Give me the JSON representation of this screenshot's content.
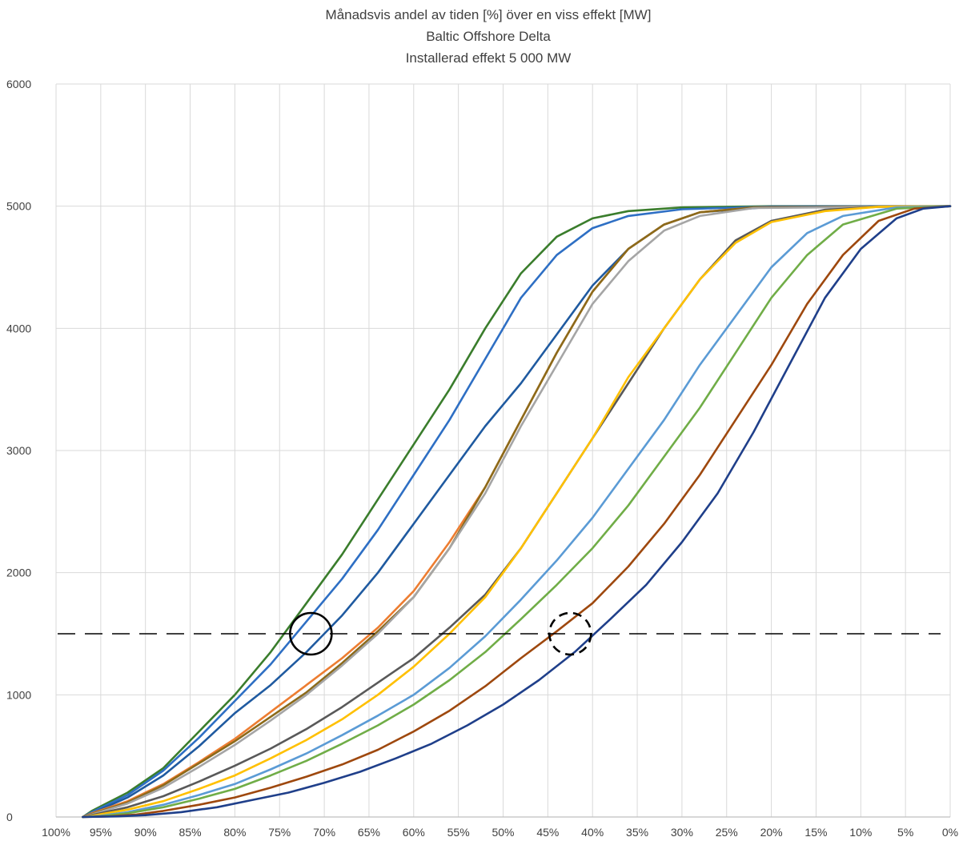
{
  "chart_data": {
    "type": "line",
    "title_lines": [
      "Månadsvis andel av tiden [%] över en viss effekt [MW]",
      "Baltic Offshore Delta",
      "Installerad effekt 5 000 MW"
    ],
    "xlabel": "",
    "ylabel": "",
    "x_ticks": [
      "100%",
      "95%",
      "90%",
      "85%",
      "80%",
      "75%",
      "70%",
      "65%",
      "60%",
      "55%",
      "50%",
      "45%",
      "40%",
      "35%",
      "30%",
      "25%",
      "20%",
      "15%",
      "10%",
      "5%",
      "0%"
    ],
    "x_tick_values": [
      100,
      95,
      90,
      85,
      80,
      75,
      70,
      65,
      60,
      55,
      50,
      45,
      40,
      35,
      30,
      25,
      20,
      15,
      10,
      5,
      0
    ],
    "y_ticks": [
      "0",
      "1000",
      "2000",
      "3000",
      "4000",
      "5000",
      "6000"
    ],
    "y_tick_values": [
      0,
      1000,
      2000,
      3000,
      4000,
      5000,
      6000
    ],
    "xlim": [
      100,
      0
    ],
    "ylim": [
      0,
      6000
    ],
    "grid": true,
    "reference_line": {
      "y": 1500,
      "style": "dashed"
    },
    "markers": [
      {
        "x": 71.5,
        "y": 1500,
        "style": "solid-circle"
      },
      {
        "x": 42.5,
        "y": 1500,
        "style": "dashed-circle"
      }
    ],
    "series": [
      {
        "color": "#3a7d2c",
        "points": [
          [
            97,
            0
          ],
          [
            96,
            50
          ],
          [
            92,
            200
          ],
          [
            88,
            400
          ],
          [
            84,
            700
          ],
          [
            80,
            1000
          ],
          [
            76,
            1350
          ],
          [
            72,
            1750
          ],
          [
            68,
            2150
          ],
          [
            64,
            2600
          ],
          [
            60,
            3050
          ],
          [
            56,
            3500
          ],
          [
            52,
            4000
          ],
          [
            48,
            4450
          ],
          [
            44,
            4750
          ],
          [
            40,
            4900
          ],
          [
            36,
            4960
          ],
          [
            30,
            4990
          ],
          [
            20,
            5000
          ],
          [
            0,
            5000
          ]
        ]
      },
      {
        "color": "#2e6fc4",
        "points": [
          [
            97,
            0
          ],
          [
            96,
            40
          ],
          [
            92,
            180
          ],
          [
            88,
            380
          ],
          [
            84,
            650
          ],
          [
            80,
            950
          ],
          [
            76,
            1250
          ],
          [
            72,
            1600
          ],
          [
            68,
            1950
          ],
          [
            64,
            2350
          ],
          [
            60,
            2800
          ],
          [
            56,
            3250
          ],
          [
            52,
            3750
          ],
          [
            48,
            4250
          ],
          [
            44,
            4600
          ],
          [
            40,
            4820
          ],
          [
            36,
            4920
          ],
          [
            30,
            4975
          ],
          [
            20,
            4998
          ],
          [
            0,
            5000
          ]
        ]
      },
      {
        "color": "#1f5aa0",
        "points": [
          [
            97,
            0
          ],
          [
            96,
            30
          ],
          [
            92,
            160
          ],
          [
            88,
            340
          ],
          [
            84,
            580
          ],
          [
            80,
            850
          ],
          [
            76,
            1080
          ],
          [
            72,
            1350
          ],
          [
            68,
            1650
          ],
          [
            64,
            2000
          ],
          [
            60,
            2400
          ],
          [
            56,
            2800
          ],
          [
            52,
            3200
          ],
          [
            48,
            3550
          ],
          [
            44,
            3950
          ],
          [
            40,
            4350
          ],
          [
            36,
            4650
          ],
          [
            32,
            4850
          ],
          [
            28,
            4950
          ],
          [
            20,
            4995
          ],
          [
            0,
            5000
          ]
        ]
      },
      {
        "color": "#ed7d31",
        "points": [
          [
            97,
            0
          ],
          [
            96,
            30
          ],
          [
            92,
            130
          ],
          [
            88,
            270
          ],
          [
            84,
            450
          ],
          [
            80,
            640
          ],
          [
            76,
            860
          ],
          [
            72,
            1080
          ],
          [
            68,
            1300
          ],
          [
            64,
            1550
          ],
          [
            60,
            1850
          ],
          [
            56,
            2250
          ],
          [
            52,
            2700
          ],
          [
            48,
            3250
          ],
          [
            44,
            3800
          ],
          [
            40,
            4300
          ],
          [
            36,
            4650
          ],
          [
            32,
            4850
          ],
          [
            28,
            4950
          ],
          [
            22,
            4990
          ],
          [
            0,
            5000
          ]
        ]
      },
      {
        "color": "#8c6a1a",
        "points": [
          [
            97,
            0
          ],
          [
            96,
            25
          ],
          [
            92,
            120
          ],
          [
            88,
            260
          ],
          [
            84,
            440
          ],
          [
            80,
            620
          ],
          [
            76,
            820
          ],
          [
            72,
            1020
          ],
          [
            68,
            1260
          ],
          [
            64,
            1520
          ],
          [
            60,
            1800
          ],
          [
            56,
            2200
          ],
          [
            52,
            2700
          ],
          [
            48,
            3250
          ],
          [
            44,
            3800
          ],
          [
            40,
            4300
          ],
          [
            36,
            4650
          ],
          [
            32,
            4850
          ],
          [
            28,
            4950
          ],
          [
            22,
            4990
          ],
          [
            0,
            5000
          ]
        ]
      },
      {
        "color": "#a5a5a5",
        "points": [
          [
            97,
            0
          ],
          [
            96,
            20
          ],
          [
            92,
            110
          ],
          [
            88,
            240
          ],
          [
            84,
            410
          ],
          [
            80,
            590
          ],
          [
            76,
            790
          ],
          [
            72,
            1000
          ],
          [
            68,
            1240
          ],
          [
            64,
            1500
          ],
          [
            60,
            1800
          ],
          [
            56,
            2200
          ],
          [
            52,
            2650
          ],
          [
            48,
            3200
          ],
          [
            44,
            3700
          ],
          [
            40,
            4200
          ],
          [
            36,
            4550
          ],
          [
            32,
            4800
          ],
          [
            28,
            4920
          ],
          [
            22,
            4985
          ],
          [
            0,
            5000
          ]
        ]
      },
      {
        "color": "#595959",
        "points": [
          [
            97,
            0
          ],
          [
            96,
            15
          ],
          [
            92,
            80
          ],
          [
            88,
            170
          ],
          [
            84,
            290
          ],
          [
            80,
            420
          ],
          [
            76,
            560
          ],
          [
            72,
            720
          ],
          [
            68,
            900
          ],
          [
            64,
            1100
          ],
          [
            60,
            1300
          ],
          [
            56,
            1550
          ],
          [
            52,
            1820
          ],
          [
            48,
            2200
          ],
          [
            44,
            2650
          ],
          [
            40,
            3100
          ],
          [
            36,
            3550
          ],
          [
            32,
            4000
          ],
          [
            28,
            4400
          ],
          [
            24,
            4720
          ],
          [
            20,
            4880
          ],
          [
            14,
            4970
          ],
          [
            8,
            4995
          ],
          [
            0,
            5000
          ]
        ]
      },
      {
        "color": "#ffc000",
        "points": [
          [
            97,
            0
          ],
          [
            96,
            10
          ],
          [
            92,
            60
          ],
          [
            88,
            130
          ],
          [
            84,
            230
          ],
          [
            80,
            340
          ],
          [
            76,
            480
          ],
          [
            72,
            630
          ],
          [
            68,
            800
          ],
          [
            64,
            1000
          ],
          [
            60,
            1230
          ],
          [
            56,
            1500
          ],
          [
            52,
            1800
          ],
          [
            48,
            2200
          ],
          [
            44,
            2650
          ],
          [
            40,
            3100
          ],
          [
            36,
            3600
          ],
          [
            32,
            4000
          ],
          [
            28,
            4400
          ],
          [
            24,
            4700
          ],
          [
            20,
            4870
          ],
          [
            14,
            4960
          ],
          [
            8,
            4995
          ],
          [
            0,
            5000
          ]
        ]
      },
      {
        "color": "#5b9bd5",
        "points": [
          [
            97,
            0
          ],
          [
            95,
            10
          ],
          [
            92,
            40
          ],
          [
            88,
            100
          ],
          [
            84,
            180
          ],
          [
            80,
            270
          ],
          [
            76,
            390
          ],
          [
            72,
            520
          ],
          [
            68,
            670
          ],
          [
            64,
            830
          ],
          [
            60,
            1000
          ],
          [
            56,
            1220
          ],
          [
            52,
            1480
          ],
          [
            48,
            1780
          ],
          [
            44,
            2100
          ],
          [
            40,
            2450
          ],
          [
            36,
            2850
          ],
          [
            32,
            3250
          ],
          [
            28,
            3700
          ],
          [
            24,
            4100
          ],
          [
            20,
            4500
          ],
          [
            16,
            4780
          ],
          [
            12,
            4920
          ],
          [
            6,
            4990
          ],
          [
            0,
            5000
          ]
        ]
      },
      {
        "color": "#70ad47",
        "points": [
          [
            97,
            0
          ],
          [
            95,
            5
          ],
          [
            92,
            30
          ],
          [
            88,
            80
          ],
          [
            84,
            150
          ],
          [
            80,
            230
          ],
          [
            76,
            340
          ],
          [
            72,
            460
          ],
          [
            68,
            600
          ],
          [
            64,
            750
          ],
          [
            60,
            920
          ],
          [
            56,
            1120
          ],
          [
            52,
            1350
          ],
          [
            48,
            1620
          ],
          [
            44,
            1900
          ],
          [
            40,
            2200
          ],
          [
            36,
            2550
          ],
          [
            32,
            2950
          ],
          [
            28,
            3350
          ],
          [
            24,
            3800
          ],
          [
            20,
            4250
          ],
          [
            16,
            4600
          ],
          [
            12,
            4850
          ],
          [
            6,
            4980
          ],
          [
            0,
            5000
          ]
        ]
      },
      {
        "color": "#9e480e",
        "points": [
          [
            97,
            0
          ],
          [
            94,
            5
          ],
          [
            91,
            20
          ],
          [
            88,
            50
          ],
          [
            84,
            100
          ],
          [
            80,
            160
          ],
          [
            76,
            240
          ],
          [
            72,
            330
          ],
          [
            68,
            430
          ],
          [
            64,
            550
          ],
          [
            60,
            700
          ],
          [
            56,
            870
          ],
          [
            52,
            1070
          ],
          [
            48,
            1300
          ],
          [
            44,
            1520
          ],
          [
            40,
            1750
          ],
          [
            36,
            2050
          ],
          [
            32,
            2400
          ],
          [
            28,
            2800
          ],
          [
            24,
            3250
          ],
          [
            20,
            3700
          ],
          [
            16,
            4200
          ],
          [
            12,
            4600
          ],
          [
            8,
            4880
          ],
          [
            4,
            4980
          ],
          [
            0,
            5000
          ]
        ]
      },
      {
        "color": "#1f3f8a",
        "points": [
          [
            97,
            0
          ],
          [
            93,
            5
          ],
          [
            90,
            15
          ],
          [
            86,
            40
          ],
          [
            82,
            80
          ],
          [
            78,
            140
          ],
          [
            74,
            200
          ],
          [
            70,
            280
          ],
          [
            66,
            370
          ],
          [
            62,
            480
          ],
          [
            58,
            600
          ],
          [
            54,
            750
          ],
          [
            50,
            920
          ],
          [
            46,
            1120
          ],
          [
            42,
            1350
          ],
          [
            38,
            1620
          ],
          [
            34,
            1900
          ],
          [
            30,
            2250
          ],
          [
            26,
            2650
          ],
          [
            22,
            3150
          ],
          [
            18,
            3700
          ],
          [
            14,
            4250
          ],
          [
            10,
            4650
          ],
          [
            6,
            4900
          ],
          [
            3,
            4980
          ],
          [
            0,
            5000
          ]
        ]
      }
    ]
  }
}
